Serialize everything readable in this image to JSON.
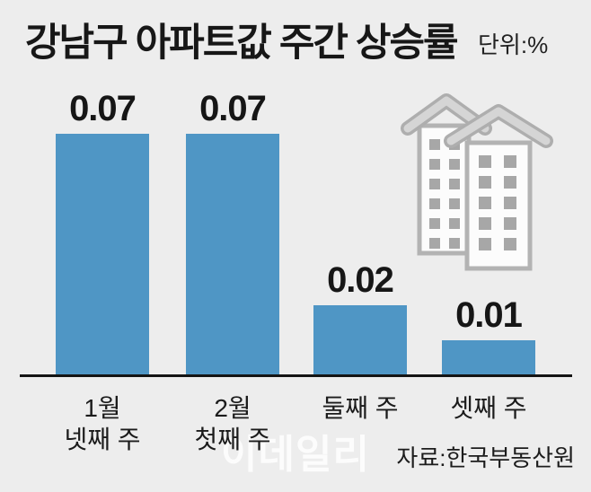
{
  "chart_data": {
    "type": "bar",
    "title": "강남구 아파트값 주간 상승률",
    "unit_label": "단위:%",
    "unit": "%",
    "categories": [
      "1월 넷째 주",
      "2월 첫째 주",
      "둘째 주",
      "셋째 주"
    ],
    "values": [
      0.07,
      0.07,
      0.02,
      0.01
    ],
    "ylim": [
      0,
      0.075
    ],
    "grid": false,
    "legend": "none",
    "value_label_position": "above-bar",
    "bar_color": "#4f96c5",
    "background_color": "#ededed",
    "axis_color": "#141414",
    "source": "자료:한국부동산원",
    "watermark": "이데일리",
    "icon": "apartment-buildings",
    "bars": [
      {
        "label_line1": "1월",
        "label_line2": "넷째 주",
        "value": 0.07,
        "value_label": "0.07"
      },
      {
        "label_line1": "2월",
        "label_line2": "첫째 주",
        "value": 0.07,
        "value_label": "0.07"
      },
      {
        "label_line1": "둘째 주",
        "label_line2": "",
        "value": 0.02,
        "value_label": "0.02"
      },
      {
        "label_line1": "셋째 주",
        "label_line2": "",
        "value": 0.01,
        "value_label": "0.01"
      }
    ]
  }
}
